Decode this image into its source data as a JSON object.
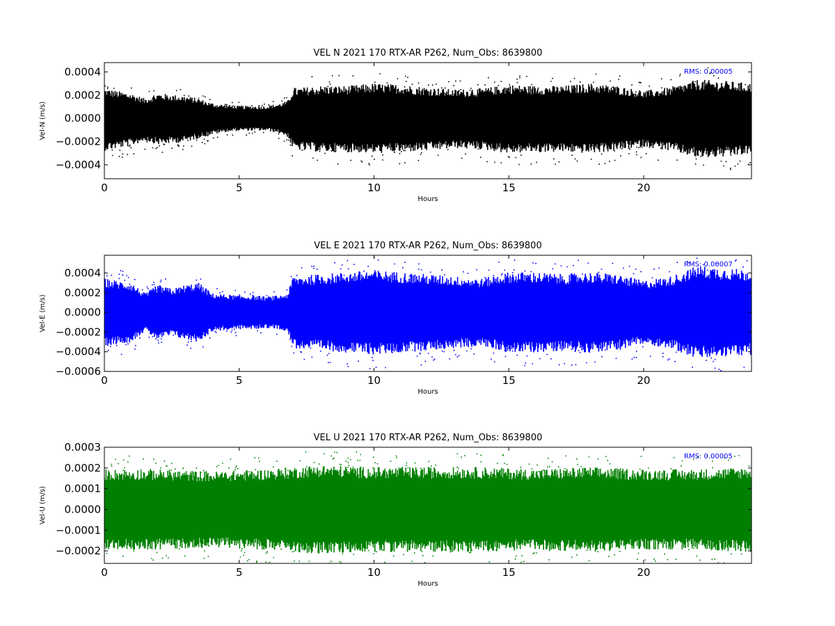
{
  "chart_data": [
    {
      "type": "scatter",
      "title": "VEL N 2021 170 RTX-AR  P262, Num_Obs: 8639800",
      "xlabel": "Hours",
      "ylabel": "Vel-N (m/s)",
      "xlim": [
        0,
        24
      ],
      "ylim": [
        -0.00052,
        0.00048
      ],
      "xticks": [
        0,
        5,
        10,
        15,
        20
      ],
      "xtick_labels": [
        "0",
        "5",
        "10",
        "15",
        "20"
      ],
      "yticks": [
        -0.0004,
        -0.0002,
        0.0,
        0.0002,
        0.0004
      ],
      "ytick_labels": [
        "−0.0004",
        "−0.0002",
        "0.0000",
        "0.0002",
        "0.0004"
      ],
      "color": "#000000",
      "grid": false,
      "annotation": "RMS:  0.00005",
      "annotation_color": "#0000ff",
      "envelope": {
        "hours": [
          0,
          0.5,
          1,
          1.5,
          2,
          2.5,
          3,
          3.5,
          4,
          4.5,
          5,
          5.5,
          6,
          6.5,
          6.8,
          7,
          8,
          9,
          10,
          11,
          12,
          13,
          14,
          15,
          16,
          17,
          18,
          19,
          20,
          21,
          22,
          23,
          24
        ],
        "upper": [
          0.00024,
          0.00022,
          0.0002,
          0.00016,
          0.0002,
          0.00019,
          0.00018,
          0.00016,
          0.00012,
          0.00011,
          0.0001,
          0.0001,
          0.0001,
          0.00012,
          0.00014,
          0.00024,
          0.00026,
          0.00026,
          0.00028,
          0.00027,
          0.00025,
          0.00023,
          0.00024,
          0.00027,
          0.00026,
          0.00026,
          0.00028,
          0.00026,
          0.00022,
          0.00025,
          0.00031,
          0.0003,
          0.00028
        ],
        "lower": [
          -0.00026,
          -0.00024,
          -0.00022,
          -0.00018,
          -0.00021,
          -0.0002,
          -0.00019,
          -0.00016,
          -0.00013,
          -0.00011,
          -0.0001,
          -0.0001,
          -0.0001,
          -0.00012,
          -0.00015,
          -0.00025,
          -0.00027,
          -0.00027,
          -0.00028,
          -0.00027,
          -0.00026,
          -0.00024,
          -0.00025,
          -0.00028,
          -0.00027,
          -0.00027,
          -0.00028,
          -0.00026,
          -0.00023,
          -0.00026,
          -0.00032,
          -0.00031,
          -0.00029
        ]
      }
    },
    {
      "type": "scatter",
      "title": "VEL E 2021 170 RTX-AR  P262, Num_Obs: 8639800",
      "xlabel": "Hours",
      "ylabel": "Vel-E (m/s)",
      "xlim": [
        0,
        24
      ],
      "ylim": [
        -0.0006,
        0.00058
      ],
      "xticks": [
        0,
        5,
        10,
        15,
        20
      ],
      "xtick_labels": [
        "0",
        "5",
        "10",
        "15",
        "20"
      ],
      "yticks": [
        -0.0006,
        -0.0004,
        -0.0002,
        0.0,
        0.0002,
        0.0004
      ],
      "ytick_labels": [
        "−0.0006",
        "−0.0004",
        "−0.0002",
        "0.0000",
        "0.0002",
        "0.0004"
      ],
      "color": "#0000ff",
      "grid": false,
      "annotation": "RMS:  0.00007",
      "annotation_color": "#0000ff",
      "envelope": {
        "hours": [
          0,
          0.5,
          1,
          1.5,
          2,
          2.5,
          3,
          3.5,
          4,
          4.5,
          5,
          5.5,
          6,
          6.5,
          6.8,
          7,
          8,
          9,
          10,
          11,
          12,
          13,
          14,
          15,
          16,
          17,
          18,
          19,
          20,
          21,
          22,
          23,
          24
        ],
        "upper": [
          0.00032,
          0.0003,
          0.00028,
          0.00018,
          0.00026,
          0.00022,
          0.00026,
          0.00028,
          0.00018,
          0.00017,
          0.00016,
          0.00016,
          0.00015,
          0.00016,
          0.00018,
          0.00034,
          0.00036,
          0.00038,
          0.0004,
          0.00038,
          0.00036,
          0.00034,
          0.00032,
          0.00038,
          0.00038,
          0.00036,
          0.00038,
          0.00036,
          0.0003,
          0.00034,
          0.00044,
          0.00042,
          0.0004
        ],
        "lower": [
          -0.00032,
          -0.0003,
          -0.00028,
          -0.00018,
          -0.00026,
          -0.00022,
          -0.00026,
          -0.00028,
          -0.00018,
          -0.00017,
          -0.00016,
          -0.00016,
          -0.00015,
          -0.00016,
          -0.00018,
          -0.00034,
          -0.00036,
          -0.00038,
          -0.0004,
          -0.00038,
          -0.00036,
          -0.00034,
          -0.00032,
          -0.00038,
          -0.00038,
          -0.00036,
          -0.00038,
          -0.00036,
          -0.0003,
          -0.00034,
          -0.00044,
          -0.00042,
          -0.0004
        ]
      }
    },
    {
      "type": "scatter",
      "title": "VEL U 2021 170 RTX-AR  P262, Num_Obs: 8639800",
      "xlabel": "Hours",
      "ylabel": "Vel-U (m/s)",
      "xlim": [
        0,
        24
      ],
      "ylim": [
        -0.00026,
        0.0003
      ],
      "xticks": [
        0,
        5,
        10,
        15,
        20
      ],
      "xtick_labels": [
        "0",
        "5",
        "10",
        "15",
        "20"
      ],
      "yticks": [
        -0.0002,
        -0.0001,
        0.0,
        0.0001,
        0.0002,
        0.0003
      ],
      "ytick_labels": [
        "−0.0002",
        "−0.0001",
        "0.0000",
        "0.0001",
        "0.0002",
        "0.0003"
      ],
      "color": "#008000",
      "grid": false,
      "annotation": "RMS:  0.00005",
      "annotation_color": "#0000ff",
      "envelope": {
        "hours": [
          0,
          2,
          4,
          6,
          8,
          10,
          12,
          14,
          16,
          18,
          20,
          22,
          24
        ],
        "upper": [
          0.00018,
          0.00018,
          0.00017,
          0.00018,
          0.0002,
          0.00019,
          0.00019,
          0.00019,
          0.00018,
          0.00019,
          0.00018,
          0.00018,
          0.00019
        ],
        "lower": [
          -0.00018,
          -0.00018,
          -0.00017,
          -0.00018,
          -0.0002,
          -0.00019,
          -0.00019,
          -0.00019,
          -0.00018,
          -0.00019,
          -0.00018,
          -0.00018,
          -0.00019
        ]
      }
    }
  ]
}
